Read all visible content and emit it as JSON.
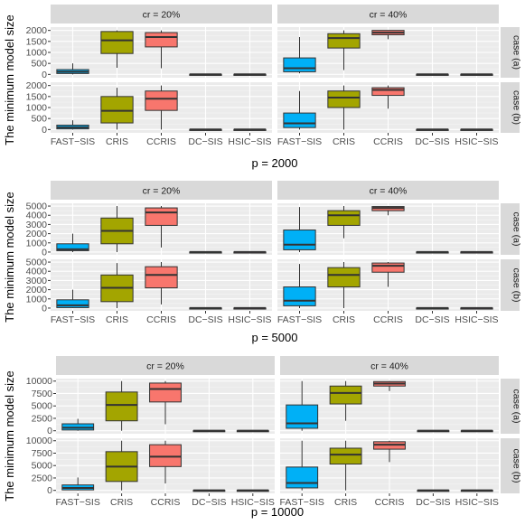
{
  "figure": {
    "ylabel": "The minimum model size"
  },
  "colors": {
    "panel_background": "#ebebeb",
    "strip_background": "#d9d9d9",
    "grid_major": "#ffffff",
    "FAST-SIS": "#00b0f6",
    "CRIS": "#a3a500",
    "CCRIS": "#f8766d",
    "DC-SIS": "#00bf7d",
    "HSIC-SIS": "#e76bf3"
  },
  "chart_data": [
    {
      "type": "box",
      "xlabel": "p = 2000",
      "ylabel": "The minimum model size",
      "column_strips": [
        "cr = 20%",
        "cr = 40%"
      ],
      "row_strips": [
        "case (a)",
        "case (b)"
      ],
      "categories": [
        "FAST−SIS",
        "CRIS",
        "CCRIS",
        "DC−SIS",
        "HSIC−SIS"
      ],
      "ylim": [
        -150,
        2150
      ],
      "yticks": [
        0,
        500,
        1000,
        1500,
        2000
      ],
      "ytick_labels": [
        "0",
        "500",
        "1000",
        "1500",
        "2000"
      ],
      "panels": [
        [
          [
            [
              0,
              40,
              120,
              220,
              500
            ],
            [
              300,
              950,
              1550,
              1950,
              2000
            ],
            [
              280,
              1250,
              1700,
              1900,
              2000
            ],
            [
              0,
              2,
              3,
              4,
              6
            ],
            [
              0,
              2,
              3,
              4,
              6
            ]
          ],
          [
            [
              50,
              120,
              280,
              750,
              1700
            ],
            [
              200,
              1200,
              1650,
              1850,
              2000
            ],
            [
              1600,
              1800,
              1900,
              2000,
              2000
            ],
            [
              0,
              2,
              3,
              4,
              6
            ],
            [
              0,
              2,
              3,
              4,
              6
            ]
          ]
        ],
        [
          [
            [
              0,
              30,
              100,
              200,
              420
            ],
            [
              0,
              300,
              850,
              1500,
              1900
            ],
            [
              0,
              870,
              1400,
              1750,
              2000
            ],
            [
              0,
              2,
              3,
              4,
              6
            ],
            [
              0,
              2,
              3,
              4,
              6
            ]
          ],
          [
            [
              0,
              90,
              280,
              750,
              1750
            ],
            [
              0,
              1000,
              1450,
              1750,
              2000
            ],
            [
              950,
              1550,
              1800,
              1900,
              2000
            ],
            [
              0,
              2,
              3,
              4,
              6
            ],
            [
              0,
              2,
              3,
              4,
              6
            ]
          ]
        ]
      ]
    },
    {
      "type": "box",
      "xlabel": "p = 5000",
      "ylabel": "The minimum model size",
      "column_strips": [
        "cr = 20%",
        "cr = 40%"
      ],
      "row_strips": [
        "case (a)",
        "case (b)"
      ],
      "categories": [
        "FAST−SIS",
        "CRIS",
        "CCRIS",
        "DC−SIS",
        "HSIC−SIS"
      ],
      "ylim": [
        -300,
        5300
      ],
      "yticks": [
        0,
        1000,
        2000,
        3000,
        4000,
        5000
      ],
      "ytick_labels": [
        "0",
        "1000",
        "2000",
        "3000",
        "4000",
        "5000"
      ],
      "panels": [
        [
          [
            [
              0,
              150,
              300,
              900,
              2000
            ],
            [
              0,
              900,
              2300,
              3700,
              5000
            ],
            [
              500,
              2900,
              4300,
              4800,
              5000
            ],
            [
              0,
              4,
              6,
              8,
              12
            ],
            [
              0,
              4,
              6,
              8,
              12
            ]
          ],
          [
            [
              0,
              250,
              800,
              2400,
              4900
            ],
            [
              1500,
              2900,
              4000,
              4500,
              5000
            ],
            [
              4000,
              4500,
              4800,
              4950,
              5000
            ],
            [
              0,
              4,
              6,
              8,
              12
            ],
            [
              0,
              4,
              6,
              8,
              12
            ]
          ]
        ],
        [
          [
            [
              0,
              50,
              300,
              900,
              2000
            ],
            [
              0,
              700,
              2200,
              3600,
              4900
            ],
            [
              400,
              2200,
              3600,
              4500,
              5000
            ],
            [
              0,
              4,
              6,
              8,
              12
            ],
            [
              0,
              4,
              6,
              8,
              12
            ]
          ],
          [
            [
              0,
              250,
              800,
              2300,
              4800
            ],
            [
              0,
              2300,
              3600,
              4400,
              5000
            ],
            [
              2300,
              3900,
              4600,
              4900,
              5000
            ],
            [
              0,
              4,
              6,
              8,
              12
            ],
            [
              0,
              4,
              6,
              8,
              12
            ]
          ]
        ]
      ]
    },
    {
      "type": "box",
      "xlabel": "p = 10000",
      "ylabel": "The minimum model size",
      "column_strips": [
        "cr = 20%",
        "cr = 40%"
      ],
      "row_strips": [
        "case (a)",
        "case (b)"
      ],
      "categories": [
        "FAST−SIS",
        "CRIS",
        "CCRIS",
        "DC−SIS",
        "HSIC−SIS"
      ],
      "ylim": [
        -600,
        10500
      ],
      "yticks": [
        0,
        2500,
        5000,
        7500,
        10000
      ],
      "ytick_labels": [
        "0",
        "2500",
        "5000",
        "7500",
        "10000"
      ],
      "panels": [
        [
          [
            [
              0,
              150,
              600,
              1400,
              2400
            ],
            [
              0,
              2000,
              5200,
              7800,
              10000
            ],
            [
              1300,
              5800,
              8400,
              9600,
              10000
            ],
            [
              0,
              8,
              12,
              16,
              24
            ],
            [
              0,
              8,
              12,
              16,
              24
            ]
          ],
          [
            [
              0,
              500,
              1500,
              5200,
              10000
            ],
            [
              2000,
              5400,
              7600,
              9000,
              10000
            ],
            [
              8000,
              9000,
              9500,
              9900,
              10000
            ],
            [
              0,
              8,
              12,
              16,
              24
            ],
            [
              0,
              8,
              12,
              16,
              24
            ]
          ]
        ],
        [
          [
            [
              0,
              100,
              500,
              1100,
              2600
            ],
            [
              0,
              1800,
              4800,
              7800,
              10000
            ],
            [
              1400,
              4800,
              6800,
              9200,
              10000
            ],
            [
              0,
              8,
              12,
              16,
              24
            ],
            [
              0,
              8,
              12,
              16,
              24
            ]
          ],
          [
            [
              0,
              500,
              1500,
              4700,
              10000
            ],
            [
              0,
              5300,
              7200,
              8500,
              10000
            ],
            [
              5700,
              8300,
              9200,
              9800,
              10000
            ],
            [
              0,
              8,
              12,
              16,
              24
            ],
            [
              0,
              8,
              12,
              16,
              24
            ]
          ]
        ]
      ]
    }
  ]
}
